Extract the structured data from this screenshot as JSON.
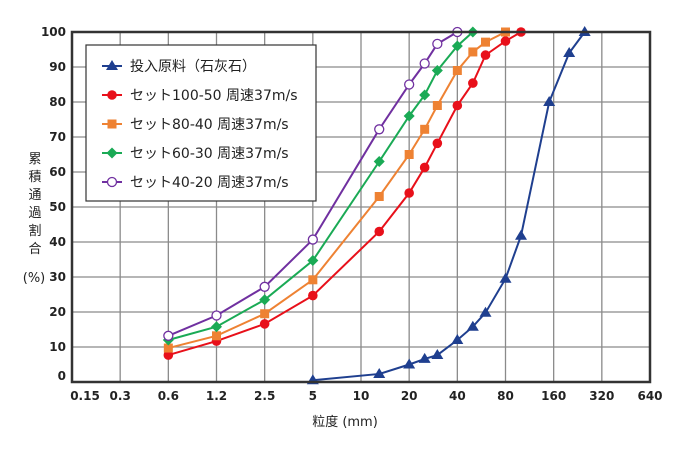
{
  "chart_data": {
    "type": "line",
    "xlabel": "粒度 (mm)",
    "ylabel": "累積通過割合",
    "ylabel_unit": "(%)",
    "x_scale": "log",
    "x_ticks": [
      0.15,
      0.3,
      0.6,
      1.2,
      2.5,
      5,
      10,
      20,
      40,
      80,
      160,
      320,
      640
    ],
    "x_tick_labels": [
      "0.15",
      "0.3",
      "0.6",
      "1.2",
      "2.5",
      "5",
      "10",
      "20",
      "40",
      "80",
      "160",
      "320",
      "640"
    ],
    "xlim": [
      0.15,
      640
    ],
    "y_ticks": [
      0,
      10,
      20,
      30,
      40,
      50,
      60,
      70,
      80,
      90,
      100
    ],
    "y_tick_labels": [
      "0",
      "10",
      "20",
      "30",
      "40",
      "50",
      "60",
      "70",
      "80",
      "90",
      "100"
    ],
    "ylim": [
      0,
      100
    ],
    "grid": true,
    "legend_position": "top-left",
    "series": [
      {
        "name": "投入原料（石灰石）",
        "color": "#1f3f8f",
        "marker": "triangle",
        "x": [
          5,
          13,
          20,
          25,
          30,
          40,
          50,
          60,
          80,
          100,
          150,
          200,
          250
        ],
        "y": [
          0.5,
          2.3,
          5,
          6.6,
          7.7,
          12,
          15.8,
          19.8,
          29.5,
          41.8,
          80,
          94,
          100
        ]
      },
      {
        "name": "セット100-50 周速37m/s",
        "color": "#e8101a",
        "marker": "circle",
        "x": [
          0.6,
          1.2,
          2.5,
          5,
          13,
          20,
          25,
          30,
          40,
          50,
          60,
          80,
          100
        ],
        "y": [
          7.7,
          11.7,
          16.6,
          24.7,
          43,
          54,
          61.3,
          68.2,
          79,
          85.4,
          93.4,
          97.4,
          100
        ]
      },
      {
        "name": "セット80-40 周速37m/s",
        "color": "#ee8233",
        "marker": "square",
        "x": [
          0.6,
          1.2,
          2.5,
          5,
          13,
          20,
          25,
          30,
          40,
          50,
          60,
          80
        ],
        "y": [
          9.7,
          13.2,
          19.5,
          29.2,
          53,
          65,
          72.2,
          79,
          89,
          94.3,
          97.1,
          100
        ]
      },
      {
        "name": "セット60-30 周速37m/s",
        "color": "#1aaa55",
        "marker": "diamond",
        "x": [
          0.6,
          1.2,
          2.5,
          5,
          13,
          20,
          25,
          30,
          40,
          50
        ],
        "y": [
          12,
          15.8,
          23.5,
          34.7,
          63,
          76,
          82,
          89,
          96,
          100
        ]
      },
      {
        "name": "セット40-20 周速37m/s",
        "color": "#7030a0",
        "marker": "open-circle",
        "x": [
          0.6,
          1.2,
          2.5,
          5,
          13,
          20,
          25,
          30,
          40
        ],
        "y": [
          13.2,
          19,
          27.2,
          40.7,
          72.2,
          85,
          91,
          96.6,
          100
        ]
      }
    ]
  }
}
